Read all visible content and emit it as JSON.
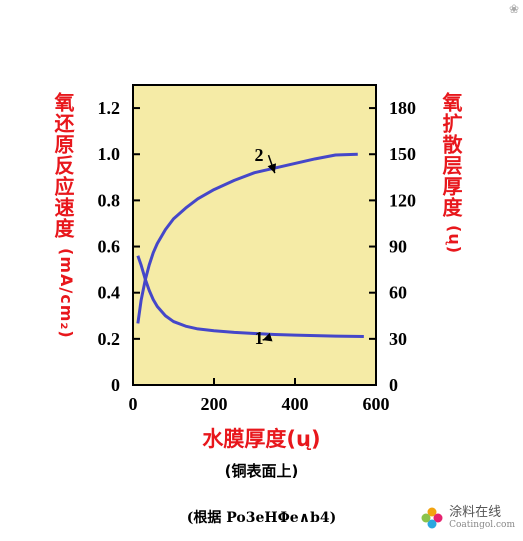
{
  "chart_data": {
    "type": "line",
    "xlabel": "水膜厚度(ų)",
    "xsub": "(铜表面上)",
    "ylabel_left": "氧还原反应速度",
    "ylabel_left_unit": "(mA/cm₂)",
    "ylabel_right": "氧扩散层厚度",
    "ylabel_right_unit": "(ų)",
    "xlim": [
      0,
      600
    ],
    "ylim_left": [
      0,
      1.3
    ],
    "ylim_right": [
      0,
      195
    ],
    "x_ticks": [
      0,
      200,
      400,
      600
    ],
    "x_tick_labels": [
      "0",
      "200",
      "400",
      "600"
    ],
    "y_left_ticks": [
      0,
      0.2,
      0.4,
      0.6,
      0.8,
      1.0,
      1.2
    ],
    "y_left_tick_labels": [
      "0",
      "0.2",
      "0.4",
      "0.6",
      "0.8",
      "1.0",
      "1.2"
    ],
    "y_right_ticks": [
      0,
      30,
      60,
      90,
      120,
      150,
      180
    ],
    "y_right_tick_labels": [
      "0",
      "30",
      "60",
      "90",
      "120",
      "150",
      "180"
    ],
    "series": [
      {
        "name": "1",
        "axis": "left",
        "x": [
          12,
          20,
          30,
          40,
          50,
          60,
          80,
          100,
          130,
          160,
          200,
          250,
          300,
          350,
          400,
          450,
          500,
          570
        ],
        "y": [
          0.56,
          0.52,
          0.46,
          0.41,
          0.37,
          0.34,
          0.3,
          0.275,
          0.255,
          0.243,
          0.235,
          0.228,
          0.223,
          0.219,
          0.216,
          0.214,
          0.212,
          0.21
        ]
      },
      {
        "name": "2",
        "axis": "right",
        "x": [
          12,
          20,
          30,
          40,
          50,
          60,
          80,
          100,
          130,
          160,
          200,
          250,
          300,
          350,
          400,
          450,
          500,
          555
        ],
        "y": [
          40,
          55,
          68,
          78,
          86,
          92,
          101,
          108,
          115,
          121,
          127,
          133,
          138,
          141,
          144,
          147,
          149.5,
          150
        ]
      }
    ],
    "annotations": [
      {
        "label": "2",
        "series": "2"
      },
      {
        "label": "1",
        "series": "1"
      }
    ],
    "plot_background": "#f5eba6",
    "line_color": "#4547c9"
  },
  "source_note": "(根据 Po3eHΦe∧b4)",
  "watermark": {
    "text": "涂料在线",
    "sub": "Coatingol.com"
  }
}
